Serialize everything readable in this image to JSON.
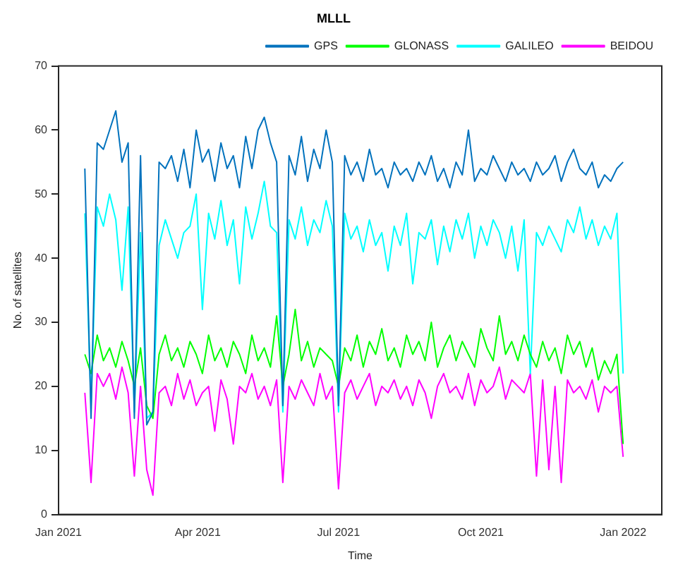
{
  "chart_data": {
    "type": "line",
    "title": "MLLL",
    "xlabel": "Time",
    "ylabel": "No. of satellites",
    "x": [
      "2021-01-18",
      "2021-01-22",
      "2021-01-26",
      "2021-01-30",
      "2021-02-03",
      "2021-02-07",
      "2021-02-11",
      "2021-02-15",
      "2021-02-19",
      "2021-02-23",
      "2021-02-27",
      "2021-03-03",
      "2021-03-07",
      "2021-03-11",
      "2021-03-15",
      "2021-03-19",
      "2021-03-23",
      "2021-03-27",
      "2021-03-31",
      "2021-04-04",
      "2021-04-08",
      "2021-04-12",
      "2021-04-16",
      "2021-04-20",
      "2021-04-24",
      "2021-04-28",
      "2021-05-02",
      "2021-05-06",
      "2021-05-10",
      "2021-05-14",
      "2021-05-18",
      "2021-05-22",
      "2021-05-26",
      "2021-05-30",
      "2021-06-03",
      "2021-06-07",
      "2021-06-11",
      "2021-06-15",
      "2021-06-19",
      "2021-06-23",
      "2021-06-27",
      "2021-07-01",
      "2021-07-05",
      "2021-07-09",
      "2021-07-13",
      "2021-07-17",
      "2021-07-21",
      "2021-07-25",
      "2021-07-29",
      "2021-08-02",
      "2021-08-06",
      "2021-08-10",
      "2021-08-14",
      "2021-08-18",
      "2021-08-22",
      "2021-08-26",
      "2021-08-30",
      "2021-09-03",
      "2021-09-07",
      "2021-09-11",
      "2021-09-15",
      "2021-09-19",
      "2021-09-23",
      "2021-09-27",
      "2021-10-01",
      "2021-10-05",
      "2021-10-09",
      "2021-10-13",
      "2021-10-17",
      "2021-10-21",
      "2021-10-25",
      "2021-10-29",
      "2021-11-02",
      "2021-11-06",
      "2021-11-10",
      "2021-11-14",
      "2021-11-18",
      "2021-11-22",
      "2021-11-26",
      "2021-11-30",
      "2021-12-04",
      "2021-12-08",
      "2021-12-12",
      "2021-12-16",
      "2021-12-20",
      "2021-12-24",
      "2021-12-28",
      "2022-01-01"
    ],
    "series": [
      {
        "name": "GPS",
        "color": "#0072bd",
        "values": [
          54,
          15,
          58,
          57,
          60,
          63,
          55,
          58,
          15,
          56,
          14,
          16,
          55,
          54,
          56,
          52,
          57,
          51,
          60,
          55,
          57,
          52,
          58,
          54,
          56,
          51,
          59,
          54,
          60,
          62,
          58,
          55,
          17,
          56,
          53,
          59,
          52,
          57,
          54,
          60,
          55,
          17,
          56,
          53,
          55,
          52,
          57,
          53,
          54,
          51,
          55,
          53,
          54,
          52,
          55,
          53,
          56,
          52,
          54,
          51,
          55,
          53,
          60,
          52,
          54,
          53,
          56,
          54,
          52,
          55,
          53,
          54,
          52,
          55,
          53,
          54,
          56,
          52,
          55,
          57,
          54,
          53,
          55,
          51,
          53,
          52,
          54,
          55
        ]
      },
      {
        "name": "GLONASS",
        "color": "#00ff00",
        "values": [
          25,
          22,
          28,
          24,
          26,
          23,
          27,
          24,
          20,
          26,
          17,
          15,
          25,
          28,
          24,
          26,
          23,
          27,
          25,
          22,
          28,
          24,
          26,
          23,
          27,
          25,
          22,
          28,
          24,
          26,
          23,
          31,
          20,
          25,
          32,
          24,
          27,
          23,
          26,
          25,
          24,
          20,
          26,
          24,
          28,
          23,
          27,
          25,
          29,
          24,
          26,
          23,
          28,
          25,
          27,
          24,
          30,
          23,
          26,
          28,
          24,
          27,
          25,
          23,
          29,
          26,
          24,
          31,
          25,
          27,
          24,
          28,
          25,
          23,
          27,
          24,
          26,
          22,
          28,
          25,
          27,
          23,
          26,
          21,
          24,
          22,
          25,
          11
        ]
      },
      {
        "name": "GALILEO",
        "color": "#00ffff",
        "values": [
          47,
          17,
          48,
          45,
          50,
          46,
          35,
          48,
          16,
          44,
          15,
          16,
          42,
          46,
          43,
          40,
          44,
          45,
          50,
          32,
          47,
          43,
          49,
          42,
          46,
          36,
          48,
          43,
          47,
          52,
          45,
          44,
          16,
          46,
          43,
          48,
          42,
          46,
          44,
          49,
          45,
          16,
          47,
          43,
          45,
          41,
          46,
          42,
          44,
          38,
          45,
          42,
          47,
          36,
          44,
          43,
          46,
          39,
          45,
          41,
          46,
          43,
          47,
          40,
          45,
          42,
          46,
          44,
          40,
          45,
          38,
          46,
          22,
          44,
          42,
          45,
          43,
          41,
          46,
          44,
          48,
          43,
          46,
          42,
          45,
          43,
          47,
          22
        ]
      },
      {
        "name": "BEIDOU",
        "color": "#ff00ff",
        "values": [
          19,
          5,
          22,
          20,
          22,
          18,
          23,
          19,
          6,
          20,
          7,
          3,
          19,
          20,
          17,
          22,
          18,
          21,
          17,
          19,
          20,
          13,
          21,
          18,
          11,
          20,
          19,
          22,
          18,
          20,
          17,
          21,
          5,
          20,
          18,
          21,
          19,
          17,
          22,
          18,
          20,
          4,
          19,
          21,
          18,
          20,
          22,
          17,
          20,
          19,
          21,
          18,
          20,
          17,
          21,
          19,
          15,
          20,
          22,
          19,
          20,
          18,
          22,
          17,
          21,
          19,
          20,
          23,
          18,
          21,
          20,
          19,
          22,
          6,
          21,
          7,
          20,
          5,
          21,
          19,
          20,
          18,
          21,
          16,
          20,
          19,
          20,
          9
        ]
      }
    ],
    "xlim": [
      "2021-01-01",
      "2022-01-26"
    ],
    "xticks": [
      {
        "value": "2021-01-01",
        "label": "Jan 2021"
      },
      {
        "value": "2021-04-01",
        "label": "Apr 2021"
      },
      {
        "value": "2021-07-01",
        "label": "Jul 2021"
      },
      {
        "value": "2021-10-01",
        "label": "Oct 2021"
      },
      {
        "value": "2022-01-01",
        "label": "Jan 2022"
      }
    ],
    "ylim": [
      0,
      70
    ],
    "yticks": [
      0,
      10,
      20,
      30,
      40,
      50,
      60,
      70
    ],
    "grid": false,
    "legend": "top right",
    "marker": "none",
    "line_style": "solid"
  }
}
